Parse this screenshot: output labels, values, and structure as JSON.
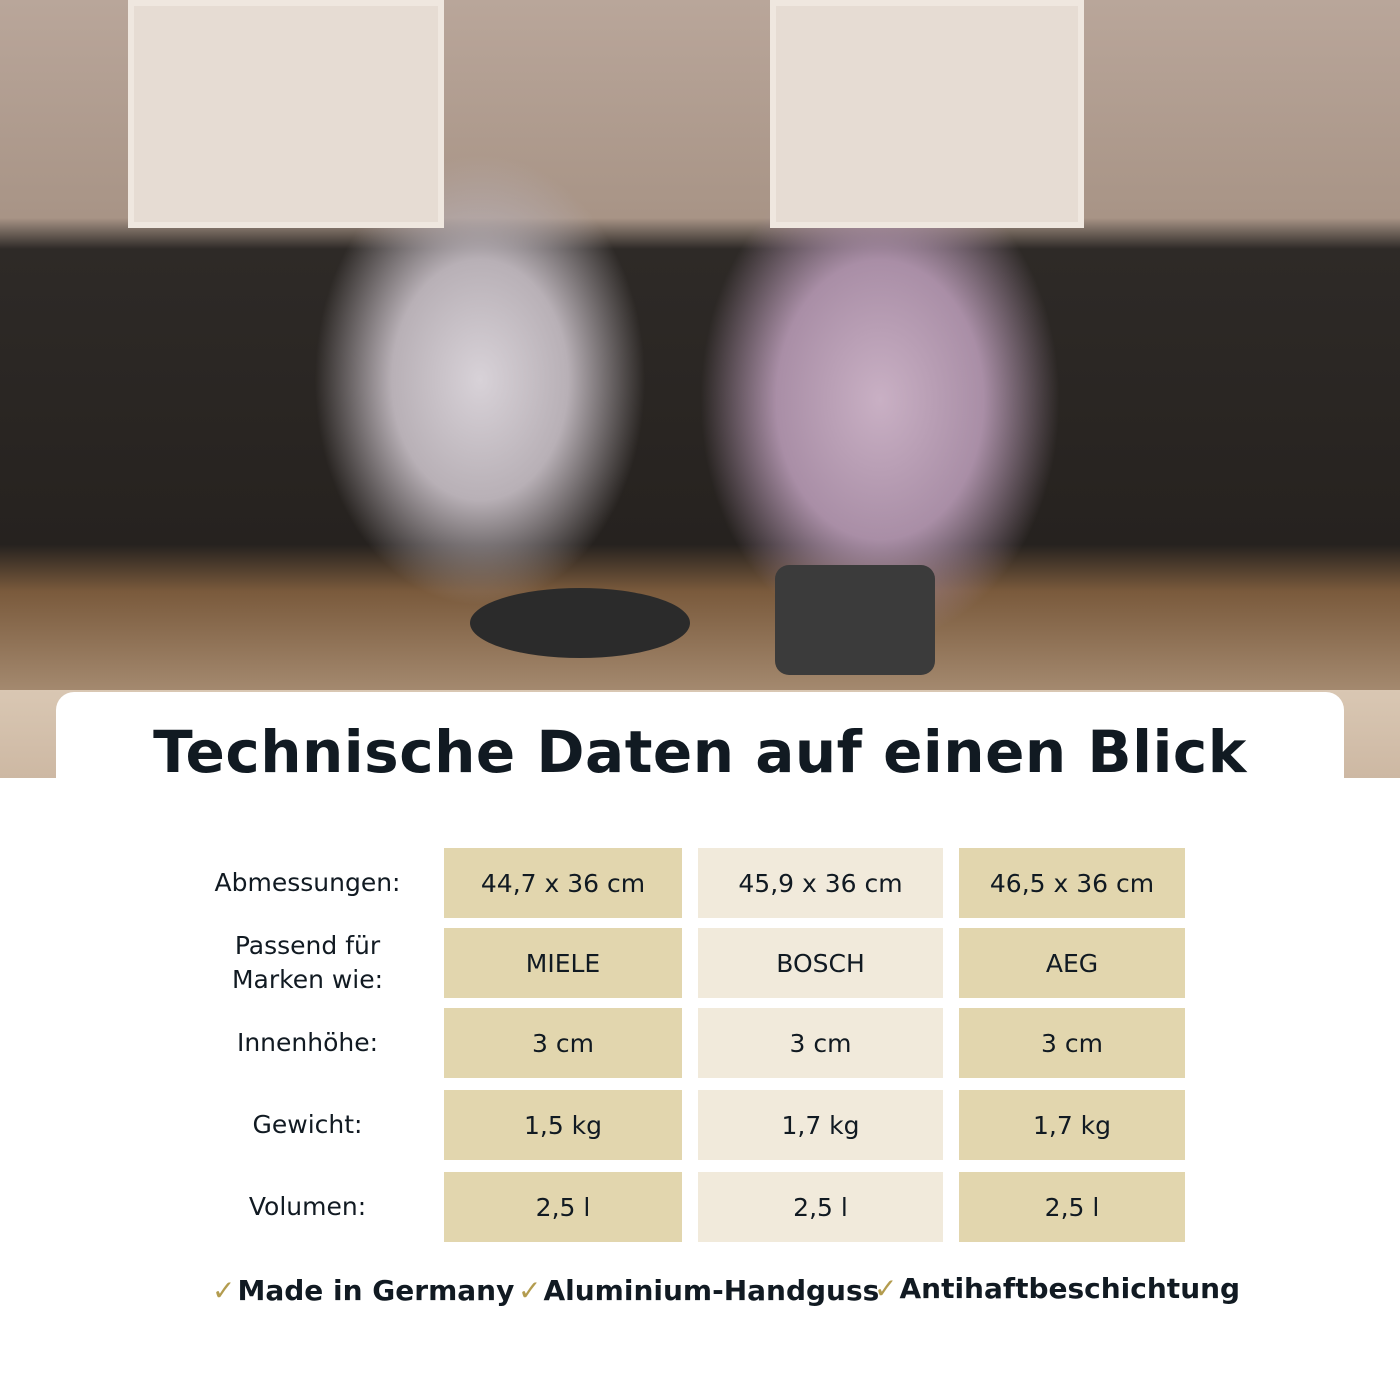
{
  "title": "Technische Daten auf einen Blick",
  "table": {
    "rows": [
      {
        "label": "Abmessungen:",
        "values": [
          "44,7 x 36 cm",
          "45,9 x 36 cm",
          "46,5 x 36 cm"
        ]
      },
      {
        "label": "Passend für Marken wie:",
        "values": [
          "MIELE",
          "BOSCH",
          "AEG"
        ]
      },
      {
        "label": "Innenhöhe:",
        "values": [
          "3 cm",
          "3 cm",
          "3 cm"
        ]
      },
      {
        "label": "Gewicht:",
        "values": [
          "1,5 kg",
          "1,7 kg",
          "1,7 kg"
        ]
      },
      {
        "label": "Volumen:",
        "values": [
          "2,5 l",
          "2,5 l",
          "2,5 l"
        ]
      }
    ]
  },
  "features": [
    {
      "icon": "check-icon",
      "label": "Made in Germany"
    },
    {
      "icon": "check-icon",
      "label": "Aluminium-Handguss"
    },
    {
      "icon": "check-icon",
      "label": "Antihaftbeschichtung"
    }
  ],
  "colors": {
    "cell_dark": "#e2d6ae",
    "cell_light": "#f1eadb",
    "check": "#b39c4f",
    "text": "#111a22"
  }
}
